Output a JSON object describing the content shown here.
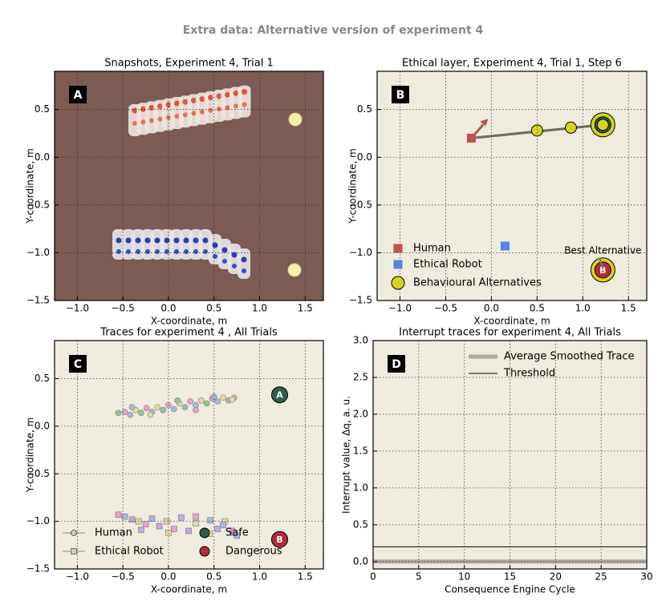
{
  "title": "Extra data: Alternative version of experiment 4",
  "chart_data": [
    {
      "type": "image",
      "panel_label": "A",
      "title": "Snapshots, Experiment 4, Trial 1",
      "xlabel": "X-coordinate, m",
      "ylabel": "Y-coordinate, m",
      "xlim": [
        -1.25,
        1.7
      ],
      "ylim": [
        -1.5,
        0.9
      ],
      "grid": true,
      "background": "#7b5b53",
      "xticks": [
        {
          "value": -1.0,
          "label": "−1.0"
        },
        {
          "value": -0.5,
          "label": "−0.5"
        },
        {
          "value": 0,
          "label": "0.0"
        },
        0.5,
        {
          "value": 1,
          "label": "1.0"
        },
        1.5
      ],
      "yticks": [
        {
          "value": -1.5,
          "label": "−1.5"
        },
        {
          "value": -1.0,
          "label": "−1.0"
        },
        {
          "value": -0.5,
          "label": "−0.5"
        },
        {
          "value": 0,
          "label": "0.0"
        },
        0.5
      ]
    },
    {
      "type": "scatter",
      "panel_label": "B",
      "title": "Ethical layer, Experiment 4, Trial 1, Step 6",
      "xlabel": "X-coordinate, m",
      "ylabel": "Y-coordinate, m",
      "xlim": [
        -1.25,
        1.7
      ],
      "ylim": [
        -1.5,
        0.9
      ],
      "grid": true,
      "background": "#efebdf",
      "xticks": [
        {
          "value": -1.0,
          "label": "−1.0"
        },
        {
          "value": -0.5,
          "label": "−0.5"
        },
        {
          "value": 0,
          "label": "0.0"
        },
        0.5,
        {
          "value": 1,
          "label": "1.0"
        },
        1.5
      ],
      "yticks": [
        {
          "value": -1.5,
          "label": "−1.5"
        },
        {
          "value": -1.0,
          "label": "−1.0"
        },
        {
          "value": -0.5,
          "label": "−0.5"
        },
        {
          "value": 0,
          "label": "0.0"
        },
        0.5
      ],
      "series": [
        {
          "name": "Human",
          "color": "#c0504d",
          "marker": "square",
          "x": [
            -0.22
          ],
          "values": [
            0.2
          ]
        },
        {
          "name": "Ethical Robot",
          "color": "#5b7fe8",
          "marker": "square",
          "x": [
            0.15
          ],
          "values": [
            -0.93
          ]
        },
        {
          "name": "Behavioural Alternatives",
          "color": "#d4d41a",
          "marker": "circle",
          "x": [
            0.5,
            0.87,
            1.22
          ],
          "values": [
            0.28,
            0.31,
            0.34
          ]
        }
      ],
      "markers": [
        {
          "label": "A",
          "x": 1.22,
          "y": 0.34,
          "color": "#2e5e4a"
        },
        {
          "label": "B",
          "x": 1.22,
          "y": -1.18,
          "color": "#b52a3a"
        }
      ],
      "annotation": {
        "text": "Best Alternative",
        "x": 1.22,
        "y": -0.98
      }
    },
    {
      "type": "scatter",
      "panel_label": "C",
      "title": "Traces for experiment 4 , All Trials",
      "xlabel": "X-coordinate, m",
      "ylabel": "Y-coordinate, m",
      "xlim": [
        -1.25,
        1.7
      ],
      "ylim": [
        -1.5,
        0.9
      ],
      "grid": true,
      "background": "#efebdf",
      "xticks": [
        {
          "value": -1.0,
          "label": "−1.0"
        },
        {
          "value": -0.5,
          "label": "−0.5"
        },
        {
          "value": 0,
          "label": "0.0"
        },
        0.5,
        {
          "value": 1,
          "label": "1.0"
        },
        1.5
      ],
      "yticks": [
        {
          "value": -1.5,
          "label": "−1.5"
        },
        {
          "value": -1.0,
          "label": "−1.0"
        },
        {
          "value": -0.5,
          "label": "−0.5"
        },
        {
          "value": 0,
          "label": "0.0"
        },
        0.5
      ],
      "series": [
        {
          "name": "Human",
          "color": "#9a9a9a",
          "marker": "circle",
          "colors": [
            "#8fc79a",
            "#e8a3c9",
            "#a9b8e8",
            "#e8d9a0"
          ],
          "x": [
            -0.55,
            -0.48,
            -0.42,
            -0.36,
            -0.3,
            -0.24,
            -0.18,
            -0.12,
            -0.06,
            0.0,
            0.06,
            0.12,
            0.18,
            0.24,
            0.3,
            0.36,
            0.42,
            0.48,
            0.54,
            0.6,
            0.66,
            0.72,
            -0.4,
            -0.2,
            0.1,
            0.3,
            0.5,
            0.7
          ],
          "values": [
            0.14,
            0.15,
            0.12,
            0.17,
            0.14,
            0.19,
            0.15,
            0.2,
            0.17,
            0.22,
            0.18,
            0.24,
            0.2,
            0.26,
            0.22,
            0.27,
            0.24,
            0.29,
            0.26,
            0.3,
            0.27,
            0.3,
            0.2,
            0.12,
            0.27,
            0.17,
            0.31,
            0.28
          ]
        },
        {
          "name": "Ethical Robot",
          "color": "#9a9a9a",
          "marker": "square",
          "colors": [
            "#e8a3c9",
            "#a9b8e8",
            "#c8a8e0",
            "#e8d9a0"
          ],
          "x": [
            -0.55,
            -0.48,
            -0.4,
            -0.33,
            -0.25,
            -0.18,
            -0.1,
            -0.02,
            0.06,
            0.14,
            0.22,
            0.3,
            0.38,
            0.46,
            0.54,
            0.62,
            0.7,
            0.75,
            -0.3,
            0.0,
            0.3,
            0.6,
            0.72,
            0.45
          ],
          "values": [
            -0.93,
            -0.95,
            -0.98,
            -1.0,
            -1.03,
            -0.97,
            -1.05,
            -1.0,
            -1.08,
            -0.96,
            -1.1,
            -1.02,
            -1.12,
            -0.99,
            -1.08,
            -1.0,
            -1.1,
            -1.15,
            -1.09,
            -1.12,
            -0.95,
            -1.04,
            -1.12,
            -1.13
          ]
        },
        {
          "name": "Safe",
          "color": "#2e5e4a",
          "marker": "letter",
          "x": [
            1.22
          ],
          "values": [
            0.33
          ],
          "labels": [
            "A"
          ]
        },
        {
          "name": "Dangerous",
          "color": "#b52a3a",
          "marker": "letter",
          "x": [
            1.22
          ],
          "values": [
            -1.19
          ],
          "labels": [
            "B"
          ]
        }
      ]
    },
    {
      "type": "line",
      "panel_label": "D",
      "title": "Interrupt traces for experiment 4, All Trials",
      "xlabel": "Consequence Engine Cycle",
      "ylabel": "Interrupt value, Δq, a. u.",
      "xlim": [
        0,
        30
      ],
      "ylim": [
        -0.1,
        3.0
      ],
      "grid": true,
      "background": "#efebdf",
      "xticks": [
        0,
        5,
        10,
        15,
        20,
        25,
        30
      ],
      "yticks": [
        {
          "value": 0,
          "label": "0.0"
        },
        0.5,
        {
          "value": 1,
          "label": "1.0"
        },
        1.5,
        {
          "value": 2,
          "label": "2.0"
        },
        2.5,
        {
          "value": 3,
          "label": "3.0"
        }
      ],
      "series": [
        {
          "name": "Average Smoothed Trace",
          "color": "#b0aaa5",
          "width": 5,
          "x": [
            0,
            30
          ],
          "values": [
            0,
            0
          ]
        },
        {
          "name": "Threshold",
          "color": "#000000",
          "width": 1,
          "x": [
            0,
            30
          ],
          "values": [
            0.2,
            0.2
          ]
        },
        {
          "color": "#c58fb0",
          "width": 1,
          "x": [
            0,
            30
          ],
          "values": [
            0,
            0
          ]
        }
      ]
    }
  ]
}
